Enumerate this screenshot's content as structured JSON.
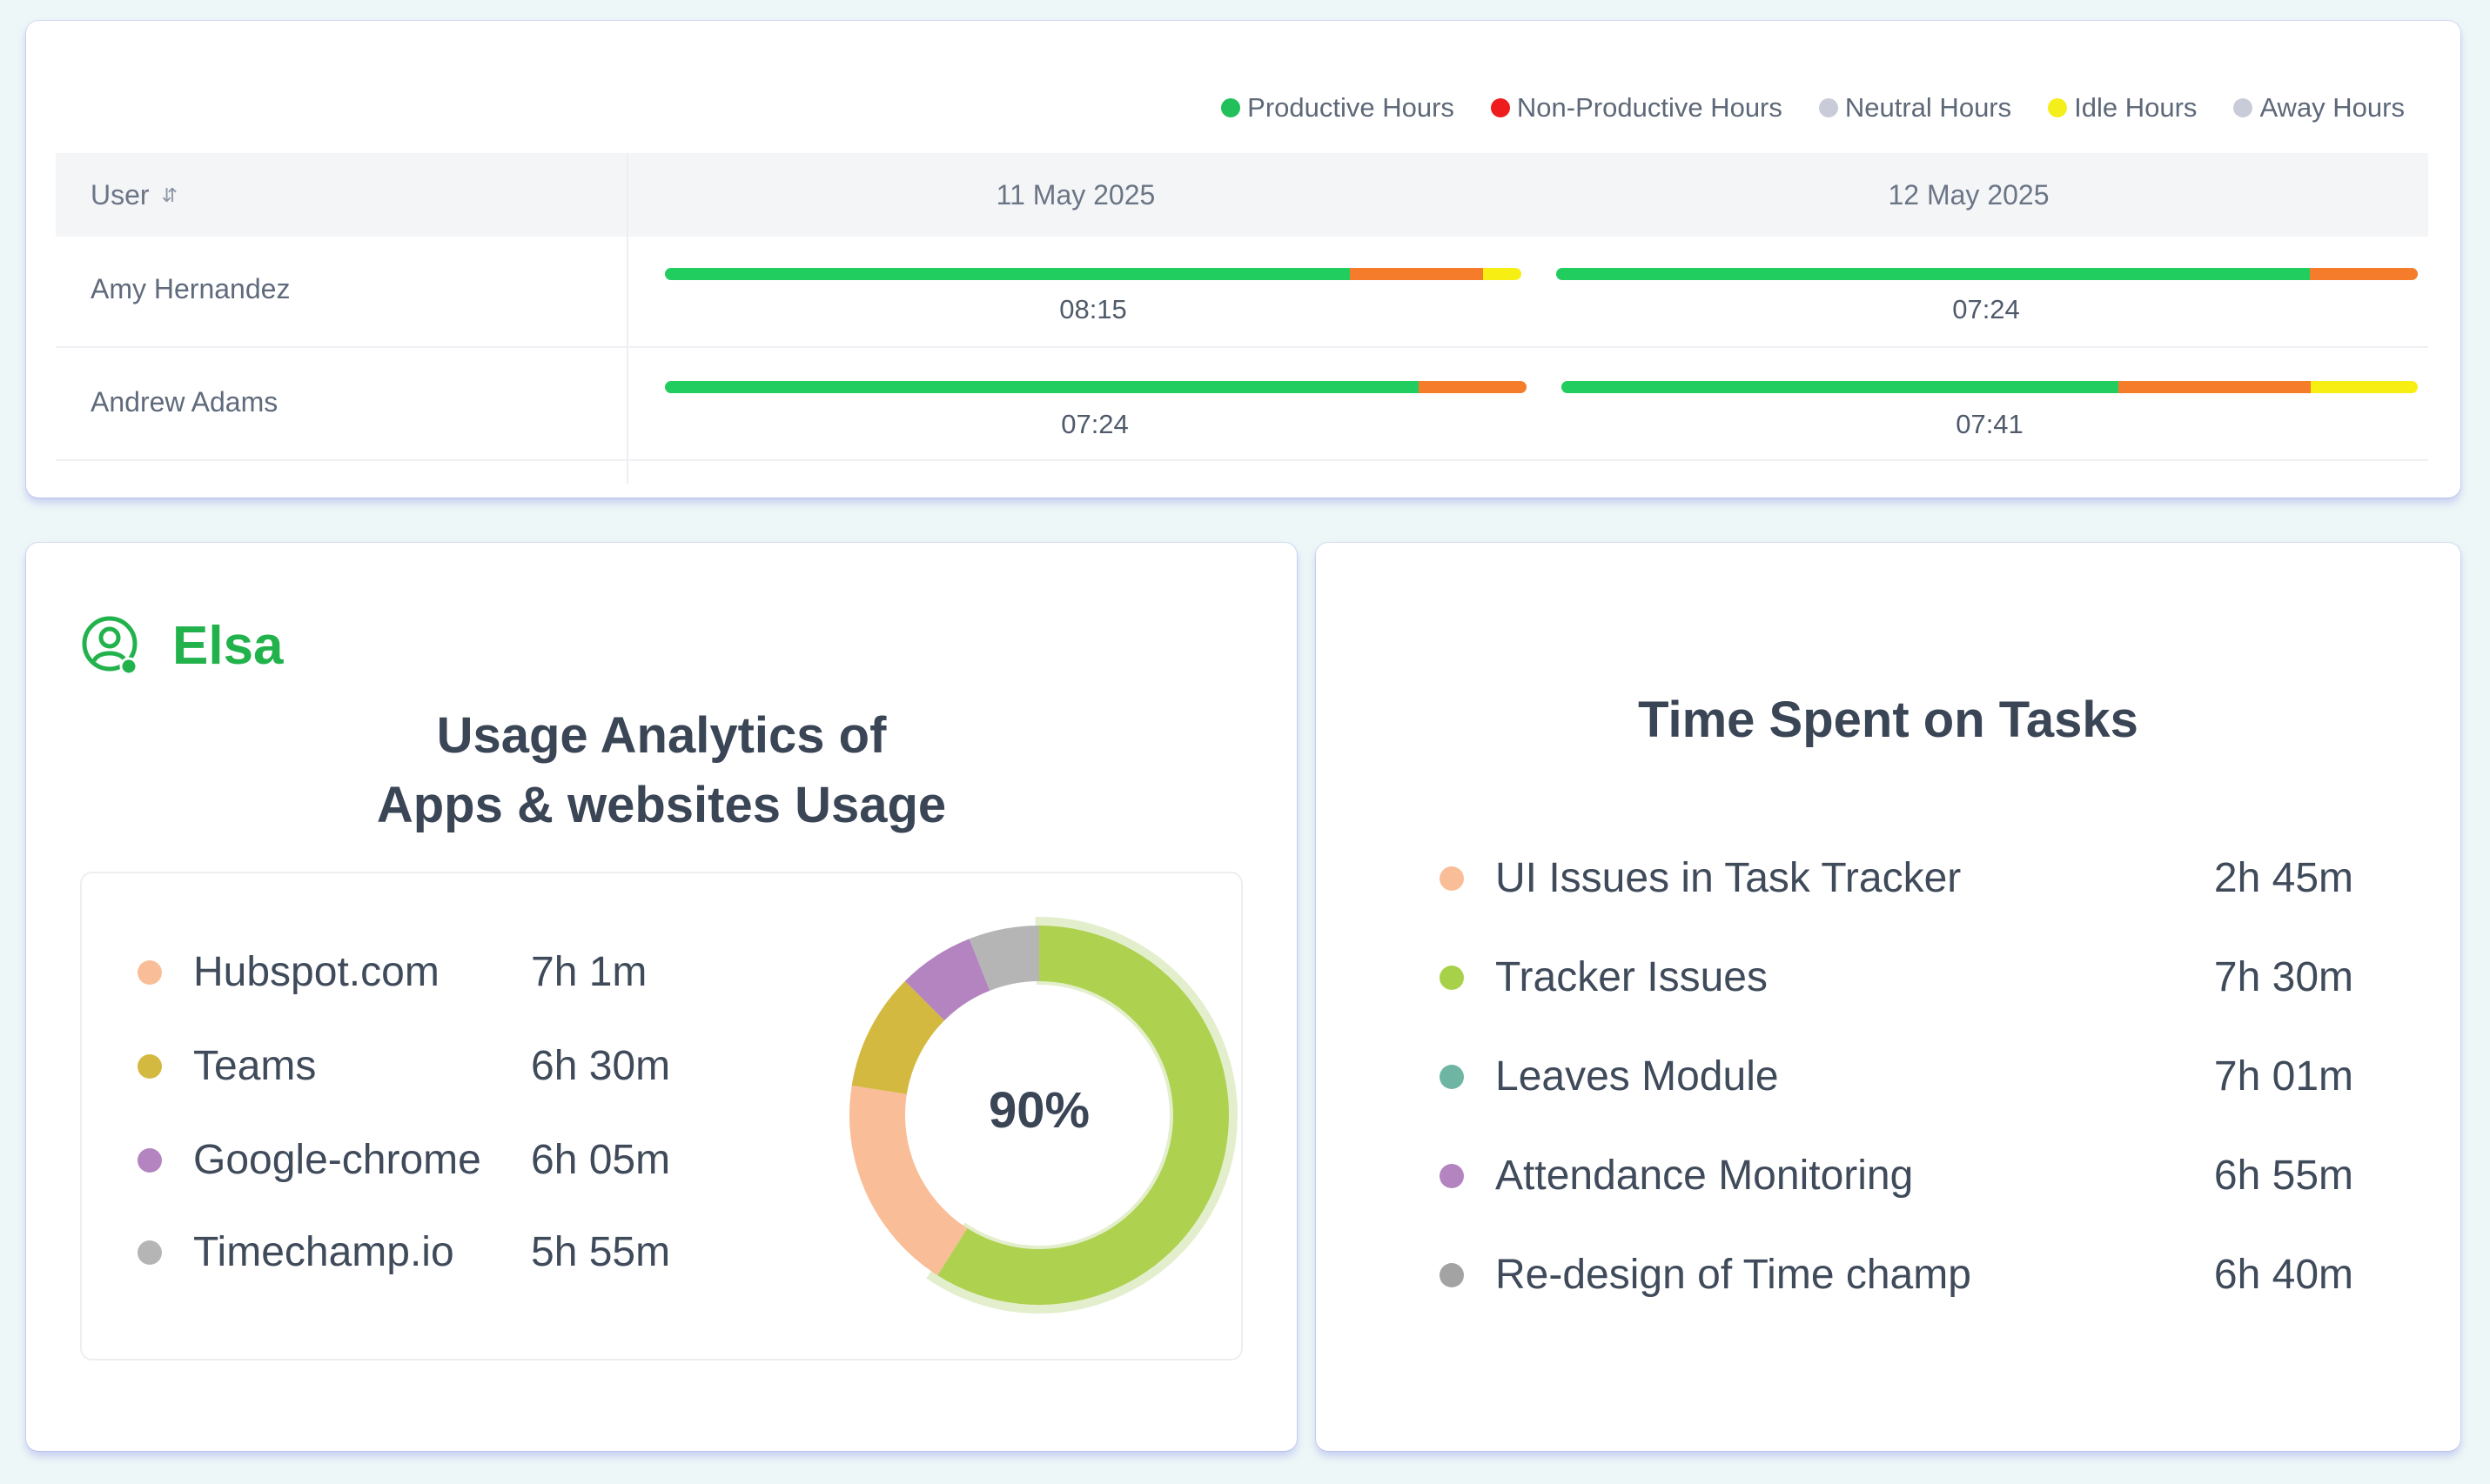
{
  "legend": [
    {
      "label": "Productive Hours",
      "color": "#21c05a"
    },
    {
      "label": "Non-Productive Hours",
      "color": "#ee1c1c"
    },
    {
      "label": "Neutral Hours",
      "color": "#c9ccd8"
    },
    {
      "label": "Idle Hours",
      "color": "#f4ee1a"
    },
    {
      "label": "Away Hours",
      "color": "#c9ccd8"
    }
  ],
  "table": {
    "user_header": "User",
    "dates": [
      "11 May 2025",
      "12 May 2025"
    ],
    "rows": [
      {
        "name": "Amy Hernandez",
        "days": [
          {
            "time": "08:15",
            "productive": 0.8,
            "non_productive": 0.155,
            "idle": 0.045
          },
          {
            "time": "07:24",
            "productive": 0.875,
            "non_productive": 0.125,
            "idle": 0
          }
        ]
      },
      {
        "name": "Andrew Adams",
        "days": [
          {
            "time": "07:24",
            "productive": 0.875,
            "non_productive": 0.125,
            "idle": 0
          },
          {
            "time": "07:41",
            "productive": 0.65,
            "non_productive": 0.225,
            "idle": 0.125
          }
        ]
      }
    ]
  },
  "bar_colors": {
    "productive": "#21cd5f",
    "non_productive": "#f57c2a",
    "idle": "#f7ef14"
  },
  "usage": {
    "user_name": "Elsa",
    "title_line1": "Usage Analytics of",
    "title_line2": "Apps & websites Usage",
    "center_label": "90%",
    "apps": [
      {
        "name": "Hubspot.com",
        "time": "7h 1m",
        "color": "#f9be98"
      },
      {
        "name": "Teams",
        "time": "6h 30m",
        "color": "#d4b940"
      },
      {
        "name": "Google-chrome",
        "time": "6h 05m",
        "color": "#b384c0"
      },
      {
        "name": "Timechamp.io",
        "time": "5h 55m",
        "color": "#b5b5b5"
      }
    ],
    "donut": [
      {
        "label": "Productive",
        "value": 0.59,
        "color": "#aed150"
      },
      {
        "label": "Hubspot.com",
        "value": 0.185,
        "color": "#f9be98"
      },
      {
        "label": "Teams",
        "value": 0.1,
        "color": "#d4b940"
      },
      {
        "label": "Google-chrome",
        "value": 0.065,
        "color": "#b384c0"
      },
      {
        "label": "Timechamp.io",
        "value": 0.06,
        "color": "#b5b5b5"
      }
    ],
    "donut_halo_color": "#e3efcc"
  },
  "tasks": {
    "title": "Time Spent on Tasks",
    "items": [
      {
        "name": "UI Issues in Task Tracker",
        "time": "2h 45m",
        "color": "#f9be98"
      },
      {
        "name": "Tracker Issues",
        "time": "7h 30m",
        "color": "#a8d14a"
      },
      {
        "name": "Leaves Module",
        "time": "7h 01m",
        "color": "#6fb5a4"
      },
      {
        "name": "Attendance Monitoring",
        "time": "6h 55m",
        "color": "#b384c0"
      },
      {
        "name": "Re-design of Time champ",
        "time": "6h 40m",
        "color": "#a3a3a3"
      }
    ]
  }
}
